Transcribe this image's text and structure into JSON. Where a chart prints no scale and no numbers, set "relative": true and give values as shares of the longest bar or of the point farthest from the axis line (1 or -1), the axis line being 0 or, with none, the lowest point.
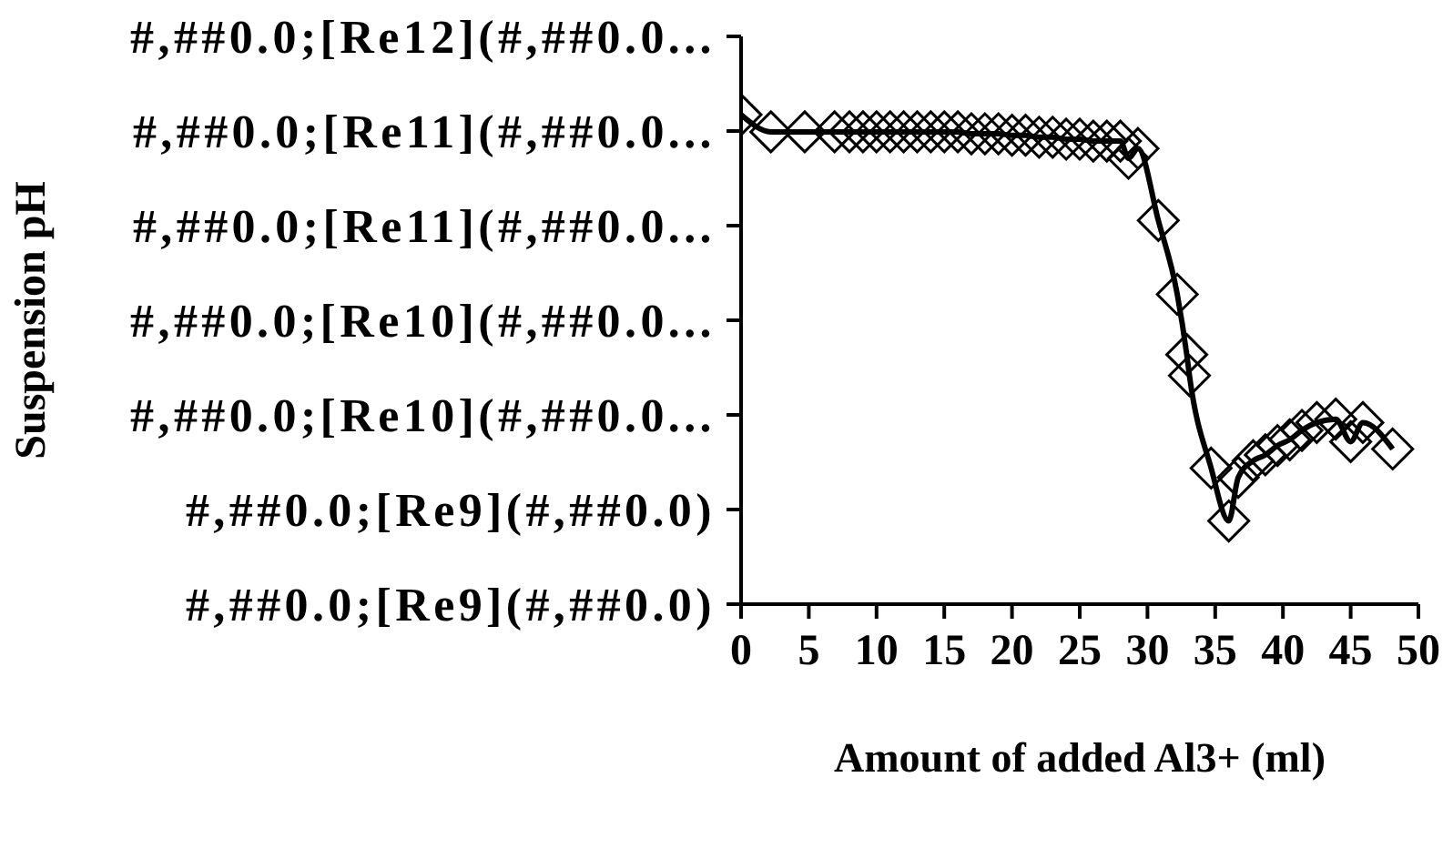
{
  "chart_data": {
    "type": "line",
    "xlabel": "Amount of added Al3+ (ml)",
    "relative": true,
    "x": [
      0,
      2.2,
      4.7,
      6.9,
      8,
      9,
      10,
      11,
      12,
      13,
      14,
      15,
      16,
      17,
      18,
      19,
      20,
      21,
      22,
      23,
      24,
      25,
      26,
      27,
      28,
      28.6,
      29.3,
      30.8,
      32.2,
      32.9,
      33.1,
      34.7,
      36,
      36.7,
      37.8,
      38.7,
      39.6,
      40.5,
      41.4,
      42.5,
      43.9,
      45,
      45.9,
      48.1
    ],
    "series": [
      {
        "color": "#000000",
        "values": [
          1,
          0.965,
          0.965,
          0.965,
          0.965,
          0.965,
          0.965,
          0.965,
          0.965,
          0.965,
          0.965,
          0.965,
          0.965,
          0.961,
          0.961,
          0.961,
          0.958,
          0.958,
          0.954,
          0.954,
          0.95,
          0.95,
          0.946,
          0.946,
          0.946,
          0.911,
          0.931,
          0.784,
          0.633,
          0.51,
          0.467,
          0.278,
          0.17,
          0.259,
          0.293,
          0.305,
          0.324,
          0.336,
          0.355,
          0.371,
          0.378,
          0.332,
          0.371,
          0.317
        ]
      }
    ],
    "xlim": [
      0,
      50
    ],
    "xticks": [
      0,
      5,
      10,
      15,
      20,
      25,
      30,
      35,
      40,
      45,
      50
    ],
    "annotations": [
      "Suspension pH",
      "#,##0.0;[Re9](#,##0.0)",
      "#,##0.0;[Re9](#,##0.0)",
      "#,##0.0;[Re10](#,##0.0...",
      "#,##0.0;[Re10](#,##0.0...",
      "#,##0.0;[Re11](#,##0.0...",
      "#,##0.0;[Re11](#,##0.0...",
      "#,##0.0;[Re12](#,##0.0..."
    ],
    "marker": "diamond",
    "line_style": "solid",
    "grid": false
  }
}
